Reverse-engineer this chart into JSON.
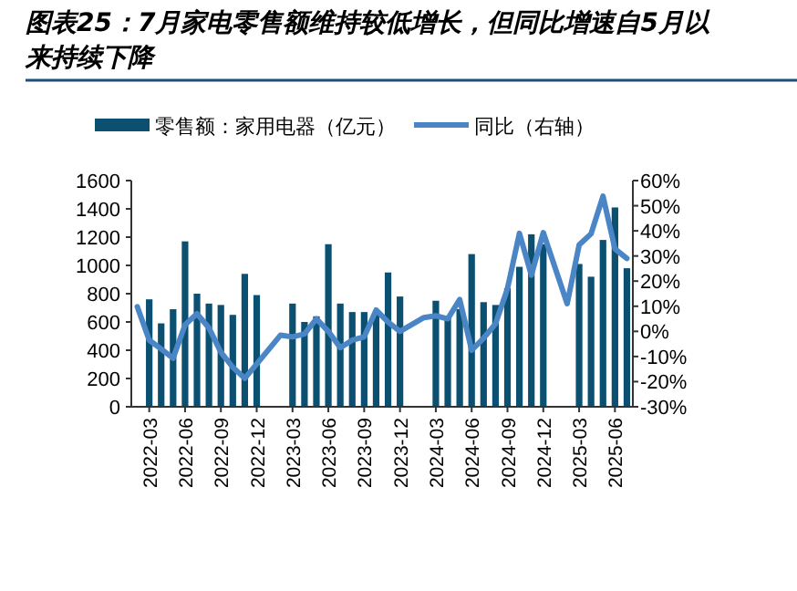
{
  "chart_data": {
    "type": "bar",
    "title": "图表25：7月家电零售额维持较低增长，但同比增速自5月以来持续下降",
    "categories": [
      null,
      "2022-03",
      null,
      null,
      "2022-06",
      null,
      null,
      "2022-09",
      null,
      null,
      "2022-12",
      null,
      null,
      "2023-03",
      null,
      null,
      "2023-06",
      null,
      null,
      "2023-09",
      null,
      null,
      "2023-12",
      null,
      null,
      "2024-03",
      null,
      null,
      "2024-06",
      null,
      null,
      "2024-09",
      null,
      null,
      "2024-12",
      null,
      null,
      "2025-03",
      null,
      null,
      "2025-06",
      null
    ],
    "series": [
      {
        "name": "零售额：家用电器（亿元）",
        "color": "#0b4f71",
        "values": [
          null,
          760,
          590,
          690,
          1170,
          800,
          730,
          720,
          650,
          940,
          790,
          null,
          null,
          730,
          600,
          640,
          1150,
          730,
          670,
          670,
          660,
          950,
          780,
          null,
          null,
          750,
          640,
          690,
          1080,
          740,
          720,
          840,
          990,
          1220,
          1150,
          null,
          null,
          1010,
          920,
          1180,
          1410,
          980
        ]
      },
      {
        "name": "同比（右轴）",
        "type": "line",
        "axis": "y2",
        "color": "#4a86c5",
        "values": [
          9.8,
          -3.5,
          -7,
          -10.7,
          2.6,
          7,
          1.4,
          -8.3,
          -14.3,
          -18.7,
          -13,
          null,
          -1.5,
          -2.2,
          -1,
          5,
          0,
          -6.5,
          -3.5,
          -2.2,
          8.5,
          3.7,
          0,
          null,
          5.5,
          6.2,
          5,
          12.7,
          -7.5,
          -2.7,
          3,
          17,
          39,
          22.4,
          39.3,
          null,
          11,
          34.4,
          38.8,
          53.8,
          32.8,
          29
        ]
      }
    ],
    "ylim": [
      0,
      1600
    ],
    "yticks": [
      0,
      200,
      400,
      600,
      800,
      1000,
      1200,
      1400,
      1600
    ],
    "y2lim": [
      -30,
      60
    ],
    "y2ticks": [
      {
        "value": -30,
        "label": "-30%"
      },
      {
        "value": -20,
        "label": "-20%"
      },
      {
        "value": -10,
        "label": "-10%"
      },
      {
        "value": 0,
        "label": "0%"
      },
      {
        "value": 10,
        "label": "10%"
      },
      {
        "value": 20,
        "label": "20%"
      },
      {
        "value": 30,
        "label": "30%"
      },
      {
        "value": 40,
        "label": "40%"
      },
      {
        "value": 50,
        "label": "50%"
      },
      {
        "value": 60,
        "label": "60%"
      }
    ],
    "legend": "top",
    "grid": false
  }
}
